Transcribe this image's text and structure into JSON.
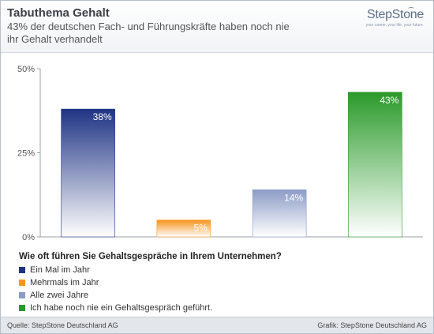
{
  "header": {
    "title": "Tabuthema Gehalt",
    "subtitle": "43% der deutschen Fach- und Führungskräfte haben noch nie ihr Gehalt verhandelt"
  },
  "logo": {
    "name": "StepStone",
    "tagline": "your career. your life. your future."
  },
  "colors": {
    "series1": "#1f3384",
    "series2": "#f7941d",
    "series3": "#8c9cc7",
    "series4": "#2a9a2a"
  },
  "chart_data": {
    "type": "bar",
    "categories": [
      "Ein Mal im Jahr",
      "Mehrmals im Jahr",
      "Alle zwei Jahre",
      "Ich habe noch nie ein Gehaltsgespräch geführt."
    ],
    "values": [
      38,
      5,
      14,
      43
    ],
    "value_labels": [
      "38%",
      "5%",
      "14%",
      "43%"
    ],
    "yticks": [
      "0%",
      "25%",
      "50%"
    ],
    "ylim": [
      0,
      50
    ],
    "legend_title": "Wie oft führen Sie Gehaltsgespräche in Ihrem Unternehmen?",
    "legend_placement": "bottom",
    "grid": false
  },
  "footer": {
    "source": "Quelle: StepStone Deutschland AG",
    "credit": "Grafik: StepStone Deutschland AG"
  }
}
